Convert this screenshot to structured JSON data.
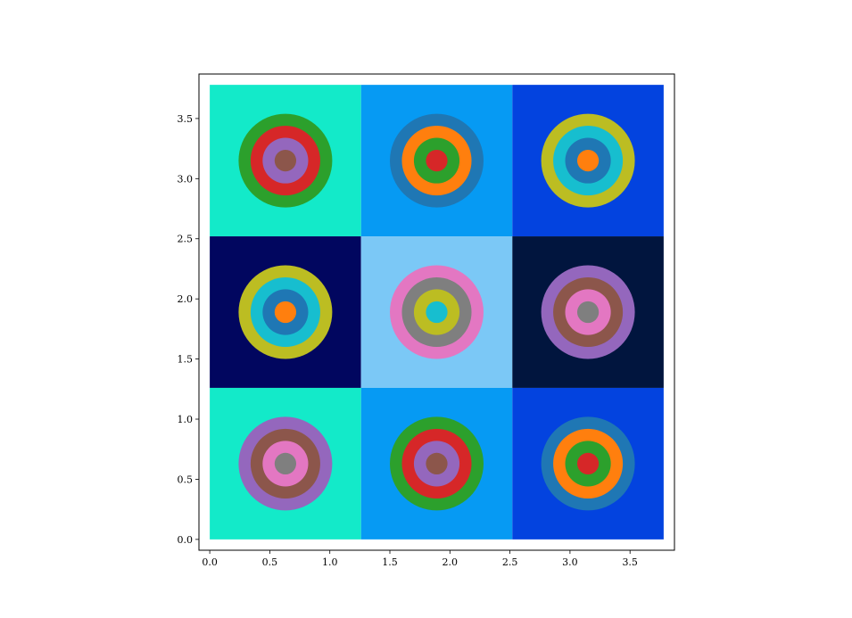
{
  "chart_data": {
    "type": "scatter",
    "title": "",
    "xlabel": "",
    "ylabel": "",
    "xlim": [
      -0.09,
      3.87
    ],
    "ylim": [
      -0.09,
      3.87
    ],
    "xticks": [
      0.0,
      0.5,
      1.0,
      1.5,
      2.0,
      2.5,
      3.0,
      3.5
    ],
    "yticks": [
      0.0,
      0.5,
      1.0,
      1.5,
      2.0,
      2.5,
      3.0,
      3.5
    ],
    "xtick_labels": [
      "0.0",
      "0.5",
      "1.0",
      "1.5",
      "2.0",
      "2.5",
      "3.0",
      "3.5"
    ],
    "ytick_labels": [
      "0.0",
      "0.5",
      "1.0",
      "1.5",
      "2.0",
      "2.5",
      "3.0",
      "3.5"
    ],
    "grid": false,
    "cell_size": 1.26,
    "ring_radii": [
      0.39,
      0.29,
      0.19,
      0.09
    ],
    "cells": [
      {
        "row": 0,
        "col": 0,
        "bg": "#13eac9",
        "rings": [
          "#2ca02c",
          "#d62728",
          "#9467bd",
          "#8c564b"
        ]
      },
      {
        "row": 0,
        "col": 1,
        "bg": "#069af3",
        "rings": [
          "#1f77b4",
          "#ff7f0e",
          "#2ca02c",
          "#d62728"
        ]
      },
      {
        "row": 0,
        "col": 2,
        "bg": "#0343df",
        "rings": [
          "#bcbd22",
          "#17becf",
          "#1f77b4",
          "#ff7f0e"
        ]
      },
      {
        "row": 1,
        "col": 0,
        "bg": "#01065f",
        "rings": [
          "#bcbd22",
          "#17becf",
          "#1f77b4",
          "#ff7f0e"
        ]
      },
      {
        "row": 1,
        "col": 1,
        "bg": "#7bc8f6",
        "rings": [
          "#e377c2",
          "#7f7f7f",
          "#bcbd22",
          "#17becf"
        ]
      },
      {
        "row": 1,
        "col": 2,
        "bg": "#01153e",
        "rings": [
          "#9467bd",
          "#8c564b",
          "#e377c2",
          "#7f7f7f"
        ]
      },
      {
        "row": 2,
        "col": 0,
        "bg": "#13eac9",
        "rings": [
          "#9467bd",
          "#8c564b",
          "#e377c2",
          "#7f7f7f"
        ]
      },
      {
        "row": 2,
        "col": 1,
        "bg": "#069af3",
        "rings": [
          "#2ca02c",
          "#d62728",
          "#9467bd",
          "#8c564b"
        ]
      },
      {
        "row": 2,
        "col": 2,
        "bg": "#0343df",
        "rings": [
          "#1f77b4",
          "#ff7f0e",
          "#2ca02c",
          "#d62728"
        ]
      }
    ]
  }
}
